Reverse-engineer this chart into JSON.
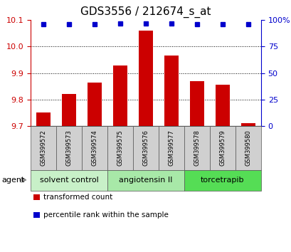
{
  "title": "GDS3556 / 212674_s_at",
  "categories": [
    "GSM399572",
    "GSM399573",
    "GSM399574",
    "GSM399575",
    "GSM399576",
    "GSM399577",
    "GSM399578",
    "GSM399579",
    "GSM399580"
  ],
  "bar_values": [
    9.75,
    9.82,
    9.865,
    9.93,
    10.06,
    9.965,
    9.87,
    9.855,
    9.71
  ],
  "percentile_values": [
    96,
    96,
    96,
    97,
    97,
    97,
    96,
    96,
    96
  ],
  "bar_color": "#cc0000",
  "percentile_color": "#0000cc",
  "ylim_left": [
    9.7,
    10.1
  ],
  "ylim_right": [
    0,
    100
  ],
  "yticks_left": [
    9.7,
    9.8,
    9.9,
    10.0,
    10.1
  ],
  "yticks_right": [
    0,
    25,
    50,
    75,
    100
  ],
  "ytick_labels_right": [
    "0",
    "25",
    "50",
    "75",
    "100%"
  ],
  "grid_lines": [
    9.8,
    9.9,
    10.0
  ],
  "agent_groups": [
    {
      "label": "solvent control",
      "indices": [
        0,
        1,
        2
      ],
      "color": "#c8f0c8"
    },
    {
      "label": "angiotensin II",
      "indices": [
        3,
        4,
        5
      ],
      "color": "#a8e8a8"
    },
    {
      "label": "torcetrapib",
      "indices": [
        6,
        7,
        8
      ],
      "color": "#55dd55"
    }
  ],
  "agent_label": "agent",
  "legend_items": [
    {
      "label": "transformed count",
      "color": "#cc0000"
    },
    {
      "label": "percentile rank within the sample",
      "color": "#0000cc"
    }
  ],
  "bar_width": 0.55,
  "title_fontsize": 11,
  "tick_fontsize": 8,
  "cat_fontsize": 6,
  "agent_fontsize": 8,
  "legend_fontsize": 7.5
}
